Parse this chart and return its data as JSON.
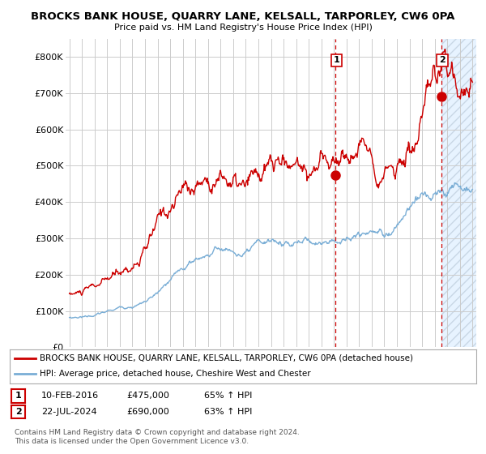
{
  "title": "BROCKS BANK HOUSE, QUARRY LANE, KELSALL, TARPORLEY, CW6 0PA",
  "subtitle": "Price paid vs. HM Land Registry's House Price Index (HPI)",
  "legend_line1": "BROCKS BANK HOUSE, QUARRY LANE, KELSALL, TARPORLEY, CW6 0PA (detached house)",
  "legend_line2": "HPI: Average price, detached house, Cheshire West and Chester",
  "annotation1_date": "10-FEB-2016",
  "annotation1_price": "£475,000",
  "annotation1_hpi": "65% ↑ HPI",
  "annotation2_date": "22-JUL-2024",
  "annotation2_price": "£690,000",
  "annotation2_hpi": "63% ↑ HPI",
  "footer": "Contains HM Land Registry data © Crown copyright and database right 2024.\nThis data is licensed under the Open Government Licence v3.0.",
  "red_color": "#cc0000",
  "blue_color": "#7aaed6",
  "hatch_color": "#cce0f0",
  "background_color": "#ffffff",
  "grid_color": "#cccccc",
  "ylim": [
    0,
    850000
  ],
  "yticks": [
    0,
    100000,
    200000,
    300000,
    400000,
    500000,
    600000,
    700000,
    800000
  ],
  "ytick_labels": [
    "£0",
    "£100K",
    "£200K",
    "£300K",
    "£400K",
    "£500K",
    "£600K",
    "£700K",
    "£800K"
  ],
  "marker1_x": 2016.1,
  "marker1_y": 475000,
  "marker2_x": 2024.55,
  "marker2_y": 690000,
  "vline1_x": 2016.1,
  "vline2_x": 2024.55,
  "xmin": 1994.7,
  "xmax": 2027.3
}
